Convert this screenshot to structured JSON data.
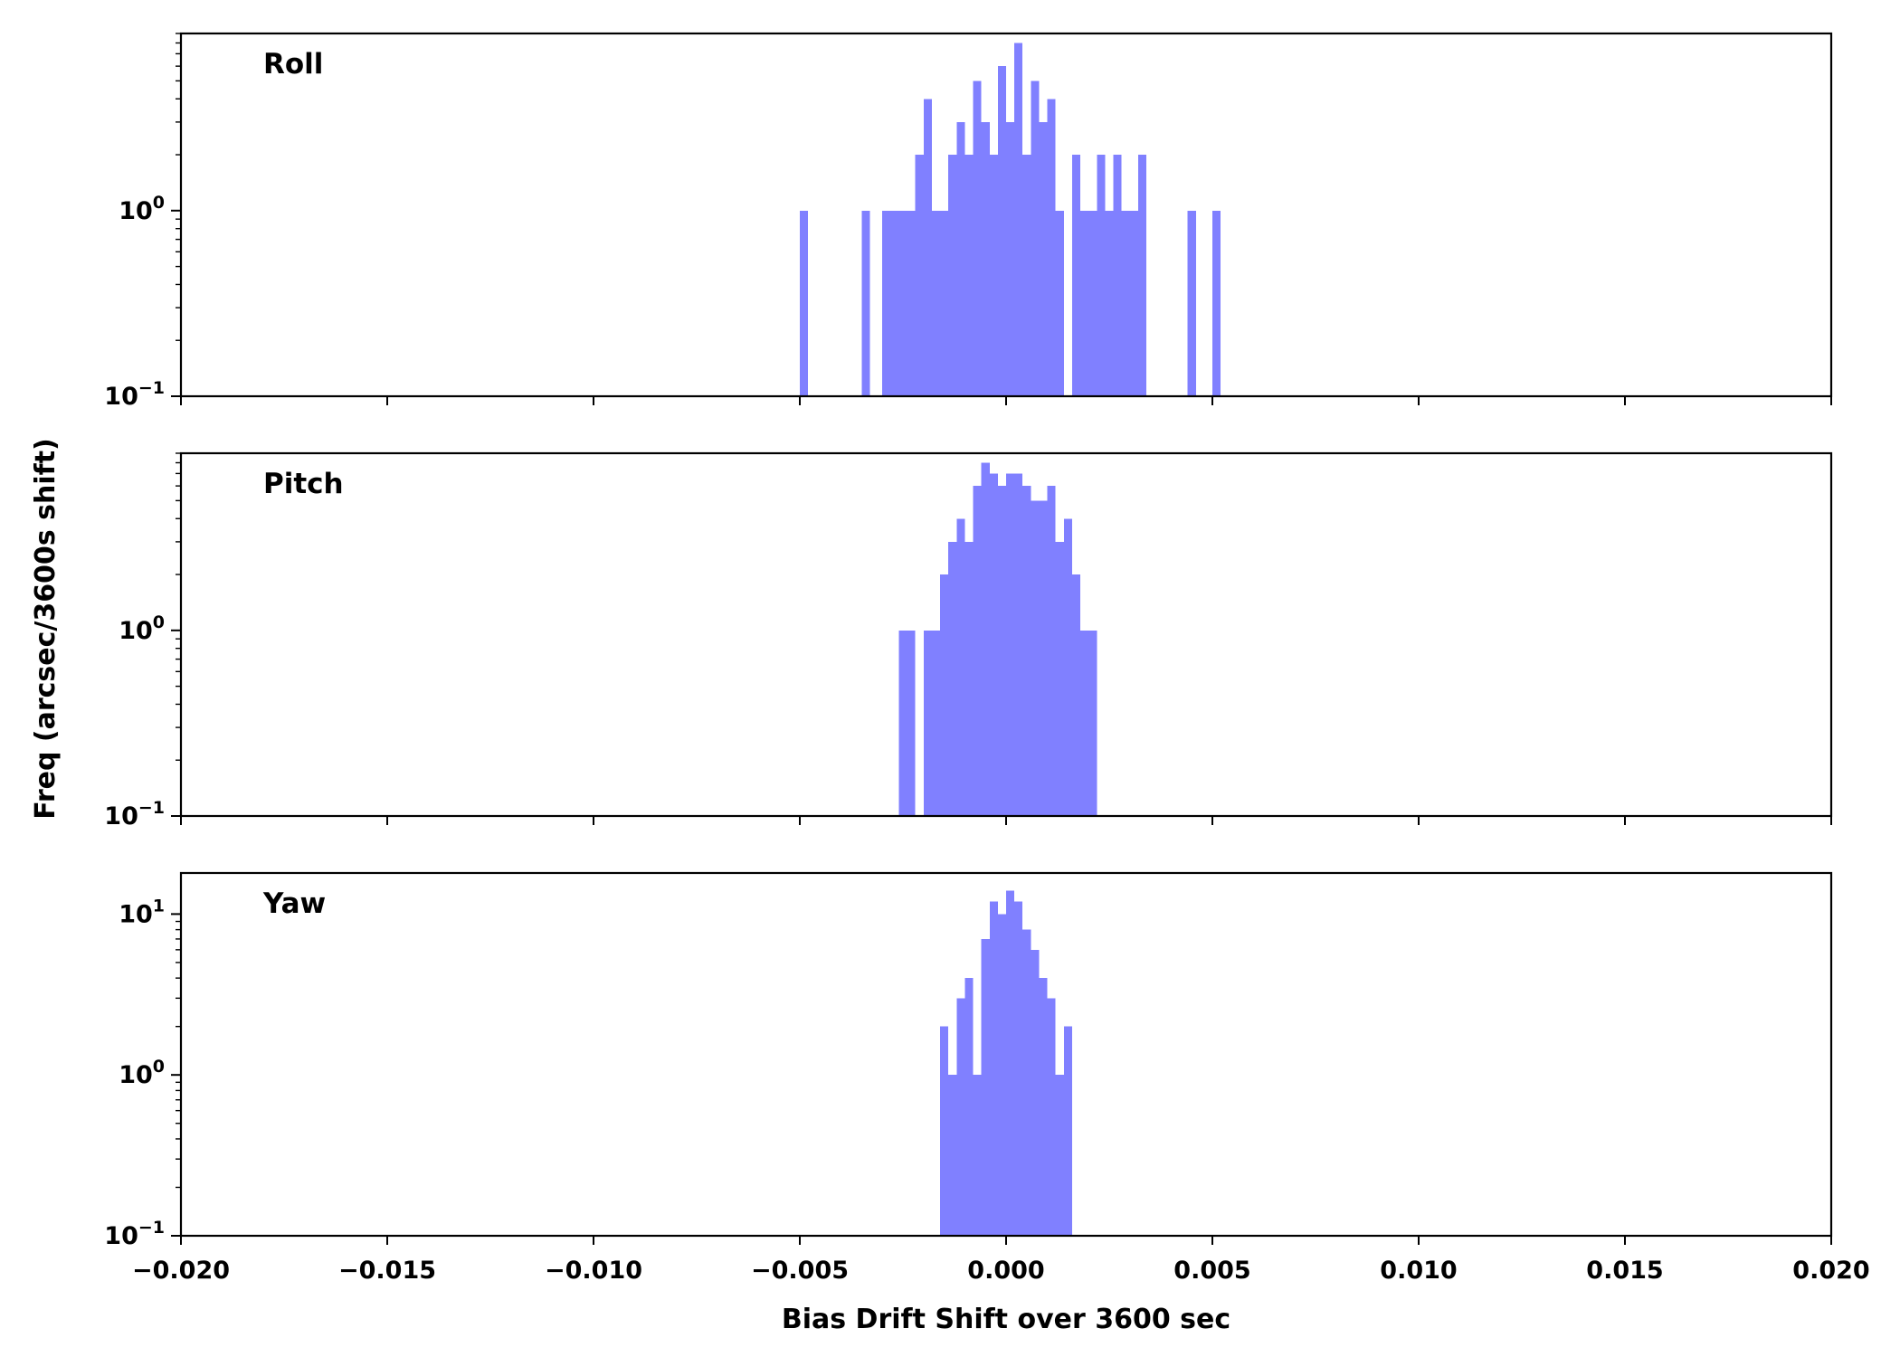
{
  "chart_data": {
    "type": "bar",
    "subtype": "histogram",
    "xlabel": "Bias Drift Shift over 3600 sec",
    "ylabel": "Freq (arcsec/3600s shift)",
    "xlim": [
      -0.02,
      0.02
    ],
    "x_ticks": [
      -0.02,
      -0.015,
      -0.01,
      -0.005,
      0.0,
      0.005,
      0.01,
      0.015,
      0.02
    ],
    "x_tick_labels": [
      "−0.020",
      "−0.015",
      "−0.010",
      "−0.005",
      "0.000",
      "0.005",
      "0.010",
      "0.015",
      "0.020"
    ],
    "sharex": true,
    "yscale": "log",
    "grid": false,
    "bar_color": "#8080ff",
    "bin_width": 0.0002,
    "panels": [
      {
        "name": "Roll",
        "ylim": [
          0.1,
          9
        ],
        "y_ticks": [
          {
            "value": 0.1,
            "base": "10",
            "exp": "−1"
          },
          {
            "value": 1,
            "base": "10",
            "exp": "0"
          }
        ],
        "bins": [
          {
            "x": -0.0049,
            "count": 1
          },
          {
            "x": -0.0034,
            "count": 1
          },
          {
            "x": -0.0029,
            "count": 1
          },
          {
            "x": -0.0027,
            "count": 1
          },
          {
            "x": -0.0025,
            "count": 1
          },
          {
            "x": -0.0023,
            "count": 1
          },
          {
            "x": -0.0021,
            "count": 2
          },
          {
            "x": -0.0019,
            "count": 4
          },
          {
            "x": -0.0017,
            "count": 1
          },
          {
            "x": -0.0015,
            "count": 1
          },
          {
            "x": -0.0013,
            "count": 2
          },
          {
            "x": -0.0011,
            "count": 3
          },
          {
            "x": -0.0009,
            "count": 2
          },
          {
            "x": -0.0007,
            "count": 5
          },
          {
            "x": -0.0005,
            "count": 3
          },
          {
            "x": -0.0003,
            "count": 2
          },
          {
            "x": -0.0001,
            "count": 6
          },
          {
            "x": 0.0001,
            "count": 3
          },
          {
            "x": 0.0003,
            "count": 8
          },
          {
            "x": 0.0005,
            "count": 2
          },
          {
            "x": 0.0007,
            "count": 5
          },
          {
            "x": 0.0009,
            "count": 3
          },
          {
            "x": 0.0011,
            "count": 4
          },
          {
            "x": 0.0013,
            "count": 1
          },
          {
            "x": 0.0017,
            "count": 2
          },
          {
            "x": 0.0019,
            "count": 1
          },
          {
            "x": 0.0021,
            "count": 1
          },
          {
            "x": 0.0023,
            "count": 2
          },
          {
            "x": 0.0025,
            "count": 1
          },
          {
            "x": 0.0027,
            "count": 2
          },
          {
            "x": 0.0029,
            "count": 1
          },
          {
            "x": 0.0031,
            "count": 1
          },
          {
            "x": 0.0033,
            "count": 2
          },
          {
            "x": 0.0045,
            "count": 1
          },
          {
            "x": 0.0051,
            "count": 1
          }
        ]
      },
      {
        "name": "Pitch",
        "ylim": [
          0.1,
          9
        ],
        "y_ticks": [
          {
            "value": 0.1,
            "base": "10",
            "exp": "−1"
          },
          {
            "value": 1,
            "base": "10",
            "exp": "0"
          }
        ],
        "bins": [
          {
            "x": -0.0025,
            "count": 1
          },
          {
            "x": -0.0023,
            "count": 1
          },
          {
            "x": -0.0019,
            "count": 1
          },
          {
            "x": -0.0017,
            "count": 1
          },
          {
            "x": -0.0015,
            "count": 2
          },
          {
            "x": -0.0013,
            "count": 3
          },
          {
            "x": -0.0011,
            "count": 4
          },
          {
            "x": -0.0009,
            "count": 3
          },
          {
            "x": -0.0007,
            "count": 6
          },
          {
            "x": -0.0005,
            "count": 8
          },
          {
            "x": -0.0003,
            "count": 7
          },
          {
            "x": -0.0001,
            "count": 6
          },
          {
            "x": 0.0001,
            "count": 7
          },
          {
            "x": 0.0003,
            "count": 7
          },
          {
            "x": 0.0005,
            "count": 6
          },
          {
            "x": 0.0007,
            "count": 5
          },
          {
            "x": 0.0009,
            "count": 5
          },
          {
            "x": 0.0011,
            "count": 6
          },
          {
            "x": 0.0013,
            "count": 3
          },
          {
            "x": 0.0015,
            "count": 4
          },
          {
            "x": 0.0017,
            "count": 2
          },
          {
            "x": 0.0019,
            "count": 1
          },
          {
            "x": 0.0021,
            "count": 1
          }
        ]
      },
      {
        "name": "Yaw",
        "ylim": [
          0.1,
          18
        ],
        "y_ticks": [
          {
            "value": 0.1,
            "base": "10",
            "exp": "−1"
          },
          {
            "value": 1,
            "base": "10",
            "exp": "0"
          },
          {
            "value": 10,
            "base": "10",
            "exp": "1"
          }
        ],
        "bins": [
          {
            "x": -0.0015,
            "count": 2
          },
          {
            "x": -0.0013,
            "count": 1
          },
          {
            "x": -0.0011,
            "count": 3
          },
          {
            "x": -0.0009,
            "count": 4
          },
          {
            "x": -0.0007,
            "count": 1
          },
          {
            "x": -0.0005,
            "count": 7
          },
          {
            "x": -0.0003,
            "count": 12
          },
          {
            "x": -0.0001,
            "count": 10
          },
          {
            "x": 0.0001,
            "count": 14
          },
          {
            "x": 0.0003,
            "count": 12
          },
          {
            "x": 0.0005,
            "count": 8
          },
          {
            "x": 0.0007,
            "count": 6
          },
          {
            "x": 0.0009,
            "count": 4
          },
          {
            "x": 0.0011,
            "count": 3
          },
          {
            "x": 0.0013,
            "count": 1
          },
          {
            "x": 0.0015,
            "count": 2
          }
        ]
      }
    ]
  }
}
